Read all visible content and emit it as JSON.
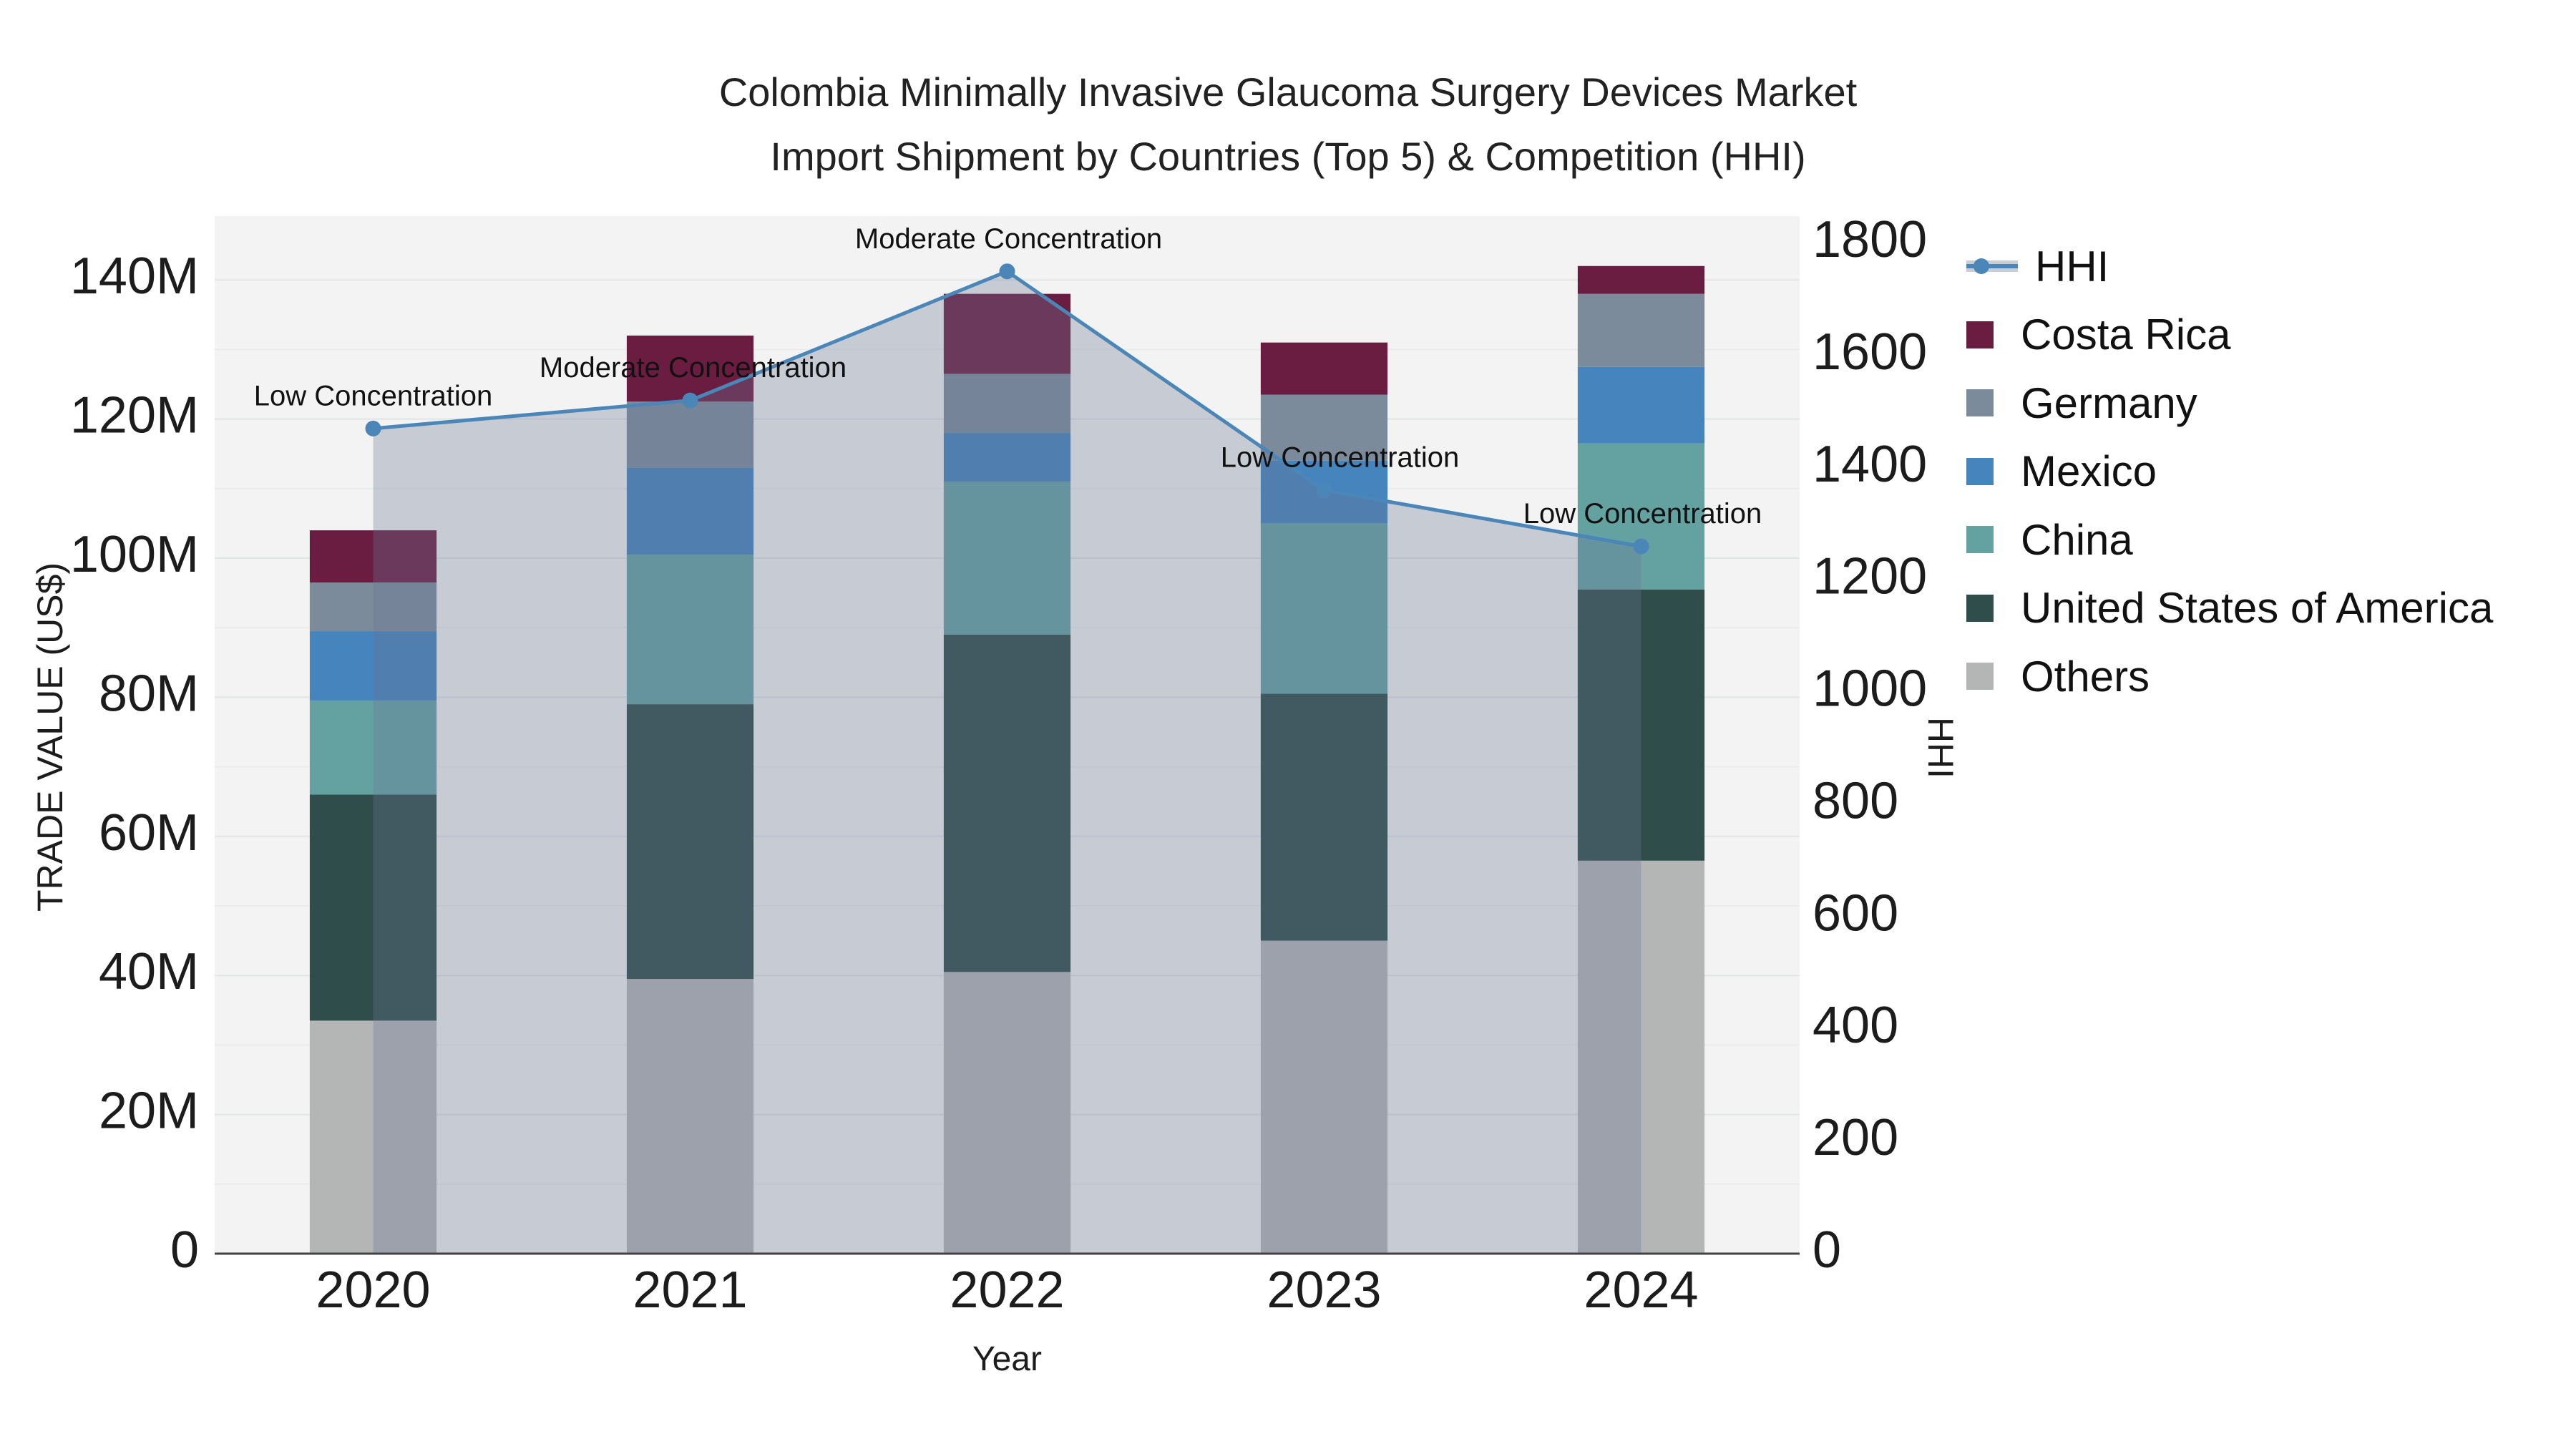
{
  "title": {
    "line1": "Colombia Minimally Invasive Glaucoma Surgery Devices Market",
    "line2": "Import Shipment by Countries (Top 5) & Competition (HHI)"
  },
  "axes": {
    "x": {
      "title": "Year",
      "tick_labels": [
        "2020",
        "2021",
        "2022",
        "2023",
        "2024"
      ]
    },
    "y_left": {
      "title": "TRADE VALUE (US$)",
      "tick_labels": [
        "0",
        "20M",
        "40M",
        "60M",
        "80M",
        "100M",
        "120M",
        "140M"
      ],
      "tick_values_millions": [
        0,
        20,
        40,
        60,
        80,
        100,
        120,
        140
      ],
      "range_millions": [
        0,
        149.2
      ],
      "grid": true
    },
    "y_right": {
      "title": "HHI",
      "tick_labels": [
        "0",
        "200",
        "400",
        "600",
        "800",
        "1000",
        "1200",
        "1400",
        "1600",
        "1800"
      ],
      "tick_values": [
        0,
        200,
        400,
        600,
        800,
        1000,
        1200,
        1400,
        1600,
        1800
      ],
      "range": [
        0,
        1848
      ],
      "grid": false
    }
  },
  "legend": {
    "position": "right",
    "items": [
      {
        "label": "HHI",
        "type": "line",
        "color": "#4a86b8"
      },
      {
        "label": "Costa Rica",
        "type": "swatch",
        "color": "#6b1c41"
      },
      {
        "label": "Germany",
        "type": "swatch",
        "color": "#7c8b9b"
      },
      {
        "label": "Mexico",
        "type": "swatch",
        "color": "#4584bc"
      },
      {
        "label": "China",
        "type": "swatch",
        "color": "#64a2a2"
      },
      {
        "label": "United States of America",
        "type": "swatch",
        "color": "#2e4d4b"
      },
      {
        "label": "Others",
        "type": "swatch",
        "color": "#b4b6b6"
      }
    ]
  },
  "chart_data": {
    "type": "bar",
    "subtype": "stacked-bar-with-line-dual-axis",
    "categories": [
      "2020",
      "2021",
      "2022",
      "2023",
      "2024"
    ],
    "values_unit": "million US$",
    "stack_order_bottom_to_top": [
      "Others",
      "United States of America",
      "China",
      "Mexico",
      "Germany",
      "Costa Rica"
    ],
    "series": [
      {
        "name": "Others",
        "color": "#b4b6b6",
        "values": [
          33.5,
          39.5,
          40.5,
          45,
          56.5
        ]
      },
      {
        "name": "United States of America",
        "color": "#2e4d4b",
        "values": [
          32.5,
          39.5,
          48.5,
          35.5,
          39
        ]
      },
      {
        "name": "China",
        "color": "#64a2a2",
        "values": [
          13.5,
          21.5,
          22,
          24.5,
          21
        ]
      },
      {
        "name": "Mexico",
        "color": "#4584bc",
        "values": [
          10,
          12.5,
          7,
          9,
          11
        ]
      },
      {
        "name": "Germany",
        "color": "#7c8b9b",
        "values": [
          7,
          9.5,
          8.5,
          9.5,
          10.5
        ]
      },
      {
        "name": "Costa Rica",
        "color": "#6b1c41",
        "values": [
          7.5,
          9.5,
          11.5,
          7.5,
          4
        ]
      }
    ],
    "bar_totals_millions": [
      104,
      132,
      138,
      131,
      142
    ],
    "hhi_line": {
      "name": "HHI",
      "axis": "right",
      "color": "#4a86b8",
      "marker": "circle",
      "area_fill_color": "#697696",
      "area_fill_opacity": 0.32,
      "values": [
        1470,
        1520,
        1750,
        1360,
        1260
      ]
    },
    "annotations": [
      {
        "year": "2020",
        "label": "Low Concentration"
      },
      {
        "year": "2021",
        "label": "Moderate Concentration"
      },
      {
        "year": "2022",
        "label": "Moderate Concentration"
      },
      {
        "year": "2023",
        "label": "Low Concentration"
      },
      {
        "year": "2024",
        "label": "Low Concentration"
      }
    ],
    "layout_hints": {
      "plot_bg": "#f2f3f2",
      "grid_color": "#e2e5e6",
      "minor_grid_color": "#eaecec",
      "axis_line_color": "#424242",
      "legend_position": "right",
      "bar_width_fraction": 0.4
    }
  }
}
